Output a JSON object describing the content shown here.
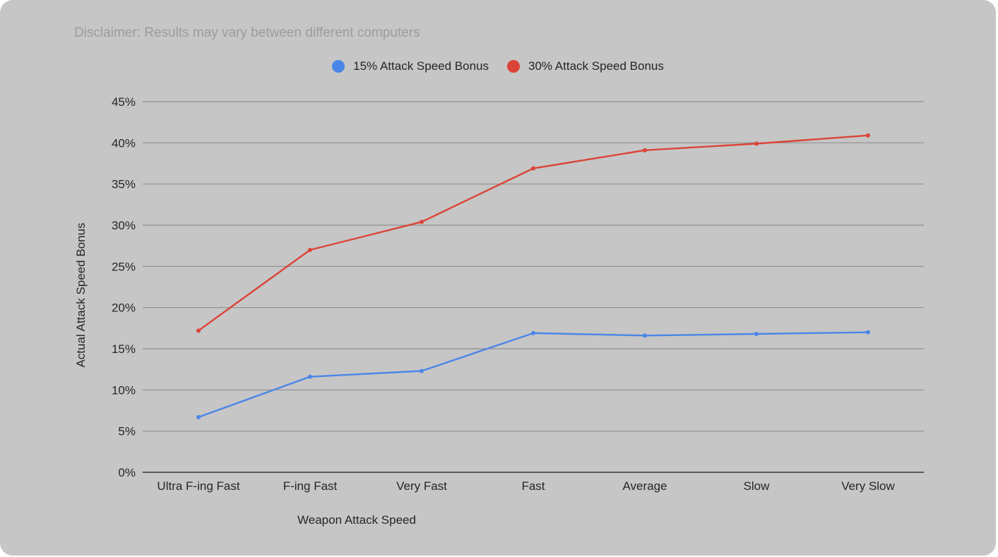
{
  "chart_data": {
    "type": "line",
    "subtitle": "Disclaimer: Results may vary between different computers",
    "xlabel": "Weapon Attack Speed",
    "ylabel": "Actual Attack Speed Bonus",
    "categories": [
      "Ultra F-ing Fast",
      "F-ing Fast",
      "Very Fast",
      "Fast",
      "Average",
      "Slow",
      "Very Slow"
    ],
    "y_ticks": [
      "0%",
      "5%",
      "10%",
      "15%",
      "20%",
      "25%",
      "30%",
      "35%",
      "40%",
      "45%"
    ],
    "ylim": [
      0,
      45
    ],
    "grid": true,
    "legend_position": "top",
    "series": [
      {
        "name": "15% Attack Speed Bonus",
        "color": "#4a86e8",
        "values": [
          6.7,
          11.6,
          12.3,
          16.9,
          16.6,
          16.8,
          17.0
        ]
      },
      {
        "name": "30% Attack Speed Bonus",
        "color": "#db4437",
        "values": [
          17.2,
          27.0,
          30.4,
          36.9,
          39.1,
          39.9,
          40.9
        ]
      }
    ]
  }
}
